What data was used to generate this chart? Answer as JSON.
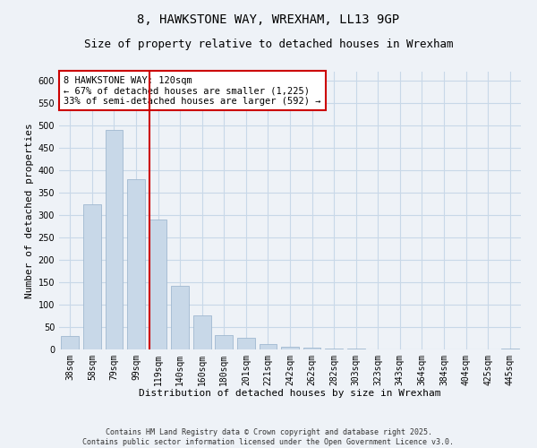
{
  "title1": "8, HAWKSTONE WAY, WREXHAM, LL13 9GP",
  "title2": "Size of property relative to detached houses in Wrexham",
  "xlabel": "Distribution of detached houses by size in Wrexham",
  "ylabel": "Number of detached properties",
  "categories": [
    "38sqm",
    "58sqm",
    "79sqm",
    "99sqm",
    "119sqm",
    "140sqm",
    "160sqm",
    "180sqm",
    "201sqm",
    "221sqm",
    "242sqm",
    "262sqm",
    "282sqm",
    "303sqm",
    "323sqm",
    "343sqm",
    "364sqm",
    "384sqm",
    "404sqm",
    "425sqm",
    "445sqm"
  ],
  "values": [
    30,
    325,
    490,
    380,
    290,
    143,
    77,
    32,
    27,
    13,
    7,
    5,
    3,
    2,
    1,
    1,
    0,
    0,
    0,
    0,
    3
  ],
  "bar_color": "#c8d8e8",
  "bar_edge_color": "#a0b8d0",
  "vline_color": "#cc0000",
  "annotation_text": "8 HAWKSTONE WAY: 120sqm\n← 67% of detached houses are smaller (1,225)\n33% of semi-detached houses are larger (592) →",
  "annotation_box_color": "#ffffff",
  "annotation_box_edge": "#cc0000",
  "ylim": [
    0,
    620
  ],
  "yticks": [
    0,
    50,
    100,
    150,
    200,
    250,
    300,
    350,
    400,
    450,
    500,
    550,
    600
  ],
  "grid_color": "#c8d8e8",
  "background_color": "#eef2f7",
  "footer_text": "Contains HM Land Registry data © Crown copyright and database right 2025.\nContains public sector information licensed under the Open Government Licence v3.0.",
  "title_fontsize": 10,
  "subtitle_fontsize": 9,
  "axis_fontsize": 8,
  "tick_fontsize": 7
}
